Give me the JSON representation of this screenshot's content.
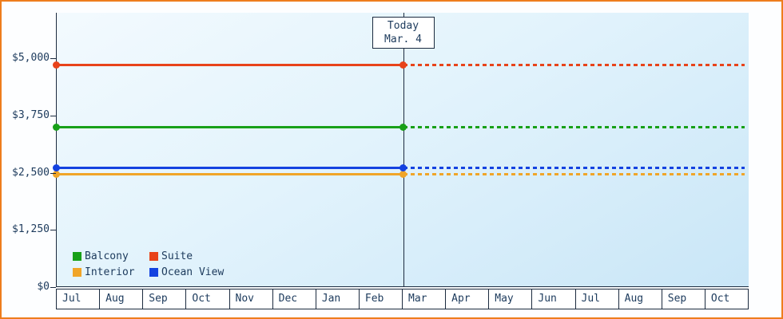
{
  "chart_data": {
    "type": "line",
    "title": "",
    "x_categories": [
      "Jul",
      "Aug",
      "Sep",
      "Oct",
      "Nov",
      "Dec",
      "Jan",
      "Feb",
      "Mar",
      "Apr",
      "May",
      "Jun",
      "Jul",
      "Aug",
      "Sep",
      "Oct"
    ],
    "y_ticks": [
      {
        "label": "$5,000",
        "value": 5000
      },
      {
        "label": "$3,750",
        "value": 3750
      },
      {
        "label": "$2,500",
        "value": 2500
      },
      {
        "label": "$1,250",
        "value": 1250
      },
      {
        "label": "$0",
        "value": 0
      }
    ],
    "y_max": 6000,
    "ylim": [
      0,
      6000
    ],
    "grid": false,
    "legend_position": "bottom-left-inside",
    "series": [
      {
        "name": "Balcony",
        "color": "#18a018",
        "value": 3500,
        "style": "solid-then-dashed-after-today"
      },
      {
        "name": "Suite",
        "color": "#e8431a",
        "value": 4850,
        "style": "solid-then-dashed-after-today"
      },
      {
        "name": "Interior",
        "color": "#f0a528",
        "value": 2460,
        "style": "solid-then-dashed-after-today"
      },
      {
        "name": "Ocean View",
        "color": "#1442e0",
        "value": 2600,
        "style": "solid-then-dashed-after-today"
      }
    ],
    "today_marker": {
      "line1": "Today",
      "line2": "Mar. 4",
      "x_index": 8
    },
    "axis_color": "#1c2b3f",
    "text_color": "#1c3a5c",
    "border_color": "#ee7d1d",
    "plot_bg_top": "#f3fafe",
    "plot_bg_bottom": "#c9e6f7"
  }
}
